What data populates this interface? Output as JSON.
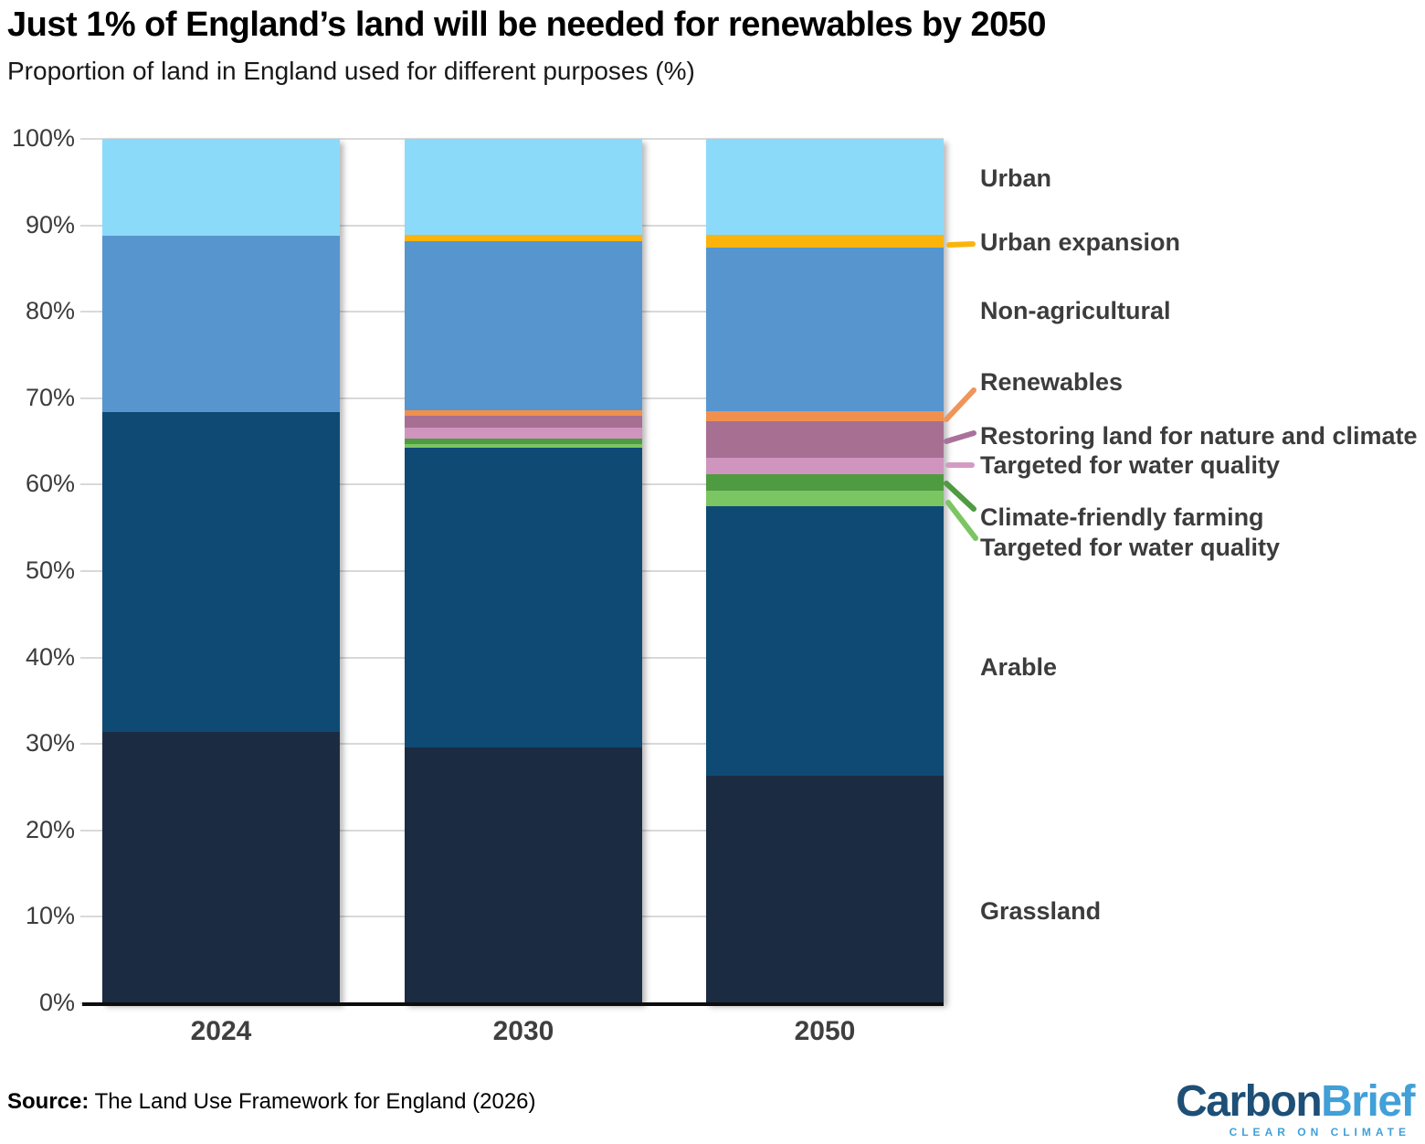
{
  "header": {
    "title": "Just 1% of England’s land will be needed for renewables by 2050",
    "subtitle": "Proportion of land in England used for different purposes (%)"
  },
  "chart_data": {
    "type": "bar",
    "stacked": true,
    "title": "Just 1% of England’s land will be needed for renewables by 2050",
    "subtitle": "Proportion of land in England used for different purposes (%)",
    "categories": [
      "2024",
      "2030",
      "2050"
    ],
    "series": [
      {
        "name": "Grassland",
        "color": "#1B2C42",
        "values": [
          31.4,
          29.6,
          26.3
        ]
      },
      {
        "name": "Arable",
        "color": "#0F4A75",
        "values": [
          37.0,
          34.7,
          31.2
        ]
      },
      {
        "name": "Targeted for water quality (farming)",
        "color": "#7BC563",
        "values": [
          0,
          0.4,
          1.8
        ]
      },
      {
        "name": "Climate-friendly farming",
        "color": "#4F9B41",
        "values": [
          0,
          0.6,
          1.9
        ]
      },
      {
        "name": "Targeted for water quality (restoring)",
        "color": "#CF95BE",
        "values": [
          0,
          1.3,
          1.9
        ]
      },
      {
        "name": "Restoring land for nature and climate",
        "color": "#A76F92",
        "values": [
          0,
          1.4,
          4.2
        ]
      },
      {
        "name": "Renewables",
        "color": "#F0904E",
        "values": [
          0,
          0.6,
          1.2
        ]
      },
      {
        "name": "Non-agricultural",
        "color": "#5795CE",
        "values": [
          20.4,
          19.6,
          18.9
        ]
      },
      {
        "name": "Urban expansion",
        "color": "#FCB40D",
        "values": [
          0,
          0.7,
          1.5
        ]
      },
      {
        "name": "Urban",
        "color": "#8CDAFA",
        "values": [
          11.2,
          11.1,
          11.1
        ]
      }
    ],
    "xlabel": "",
    "ylabel": "",
    "ylim": [
      0,
      100
    ],
    "ytick_labels": [
      "0%",
      "10%",
      "20%",
      "30%",
      "40%",
      "50%",
      "60%",
      "70%",
      "80%",
      "90%",
      "100%"
    ],
    "grid": true,
    "legend_position": "right"
  },
  "legend": {
    "items": [
      {
        "label": "Urban",
        "connector_color": null
      },
      {
        "label": "Urban expansion",
        "connector_color": "#FCB40D"
      },
      {
        "label": "Non-agricultural",
        "connector_color": null
      },
      {
        "label": "Renewables",
        "connector_color": "#F0945A"
      },
      {
        "label": "Restoring land for nature and climate",
        "connector_color": "#A9729A"
      },
      {
        "label": "Targeted for water quality",
        "connector_color": "#D49AC4"
      },
      {
        "label": "Climate-friendly farming",
        "connector_color": "#4F9B41"
      },
      {
        "label": "Targeted for water quality",
        "connector_color": "#7BC563"
      },
      {
        "label": "Arable",
        "connector_color": null
      },
      {
        "label": "Grassland",
        "connector_color": null
      }
    ]
  },
  "footer": {
    "source_label": "Source:",
    "source_text": " The Land Use Framework for England (2026)",
    "logo": {
      "part1": "Carbon",
      "part2": "Brief",
      "tagline": "CLEAR ON CLIMATE",
      "color_dark": "#1D4F77",
      "color_light": "#41A0D8"
    }
  }
}
